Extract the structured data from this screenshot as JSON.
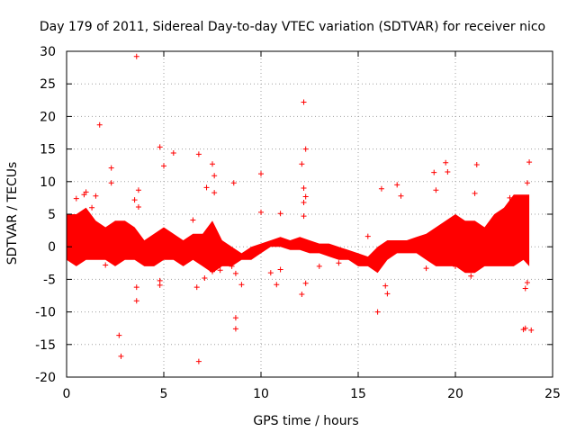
{
  "chart_data": {
    "type": "scatter",
    "title": "Day 179 of 2011, Sidereal Day-to-day VTEC variation (SDTVAR) for receiver nico",
    "xlabel": "GPS time / hours",
    "ylabel": "SDTVAR / TECUs",
    "xlim": [
      0,
      25
    ],
    "ylim": [
      -20,
      30
    ],
    "grid": true,
    "marker": "+",
    "color": "#ff0000",
    "x_ticks": [
      0,
      5,
      10,
      15,
      20,
      25
    ],
    "y_ticks": [
      -20,
      -15,
      -10,
      -5,
      0,
      5,
      10,
      15,
      20,
      25,
      30
    ],
    "x_tick_labels": [
      "0",
      "5",
      "10",
      "15",
      "20",
      "25"
    ],
    "y_tick_labels": [
      "-20",
      "-15",
      "-10",
      "-5",
      "0",
      "5",
      "10",
      "15",
      "20",
      "25",
      "30"
    ],
    "dense_band": {
      "x": [
        0.0,
        0.5,
        1.0,
        1.5,
        2.0,
        2.5,
        3.0,
        3.5,
        4.0,
        4.5,
        5.0,
        5.5,
        6.0,
        6.5,
        7.0,
        7.5,
        8.0,
        8.5,
        9.0,
        9.5,
        10.0,
        10.5,
        11.0,
        11.5,
        12.0,
        12.5,
        13.0,
        13.5,
        14.0,
        14.5,
        15.0,
        15.5,
        16.0,
        16.5,
        17.0,
        17.5,
        18.0,
        18.5,
        19.0,
        19.5,
        20.0,
        20.5,
        21.0,
        21.5,
        22.0,
        22.5,
        23.0,
        23.5,
        23.8
      ],
      "y_upper": [
        5,
        5,
        6,
        4,
        3,
        4,
        4,
        3,
        1,
        2,
        3,
        2,
        1,
        2,
        2,
        4,
        1,
        0,
        -1,
        0,
        0.5,
        1,
        1.5,
        1,
        1.5,
        1,
        0.5,
        0.5,
        0,
        -0.5,
        -1,
        -1.5,
        0,
        1,
        1,
        1,
        1.5,
        2,
        3,
        4,
        5,
        4,
        4,
        3,
        5,
        6,
        8,
        8,
        8
      ],
      "y_lower": [
        -2,
        -3,
        -2,
        -2,
        -2,
        -3,
        -2,
        -2,
        -3,
        -3,
        -2,
        -2,
        -3,
        -2,
        -3,
        -4,
        -3,
        -3,
        -2,
        -2,
        -1,
        0,
        0,
        -0.5,
        -0.5,
        -1,
        -1,
        -1.5,
        -2,
        -2,
        -3,
        -3,
        -4,
        -2,
        -1,
        -1,
        -1,
        -2,
        -3,
        -3,
        -3,
        -4,
        -4,
        -3,
        -3,
        -3,
        -3,
        -2,
        -3
      ]
    },
    "x": [
      3.6,
      1.7,
      2.3,
      2.3,
      1.0,
      4.8,
      5.0,
      5.5,
      6.8,
      7.5,
      7.6,
      8.6,
      10.0,
      10.0,
      11.0,
      12.2,
      12.3,
      12.1,
      12.2,
      12.3,
      12.2,
      12.2,
      12.3,
      12.1,
      3.6,
      3.6,
      2.7,
      2.8,
      6.8,
      8.7,
      8.7,
      4.8,
      4.8,
      9.0,
      3.7,
      3.7,
      3.5,
      16.2,
      16.4,
      16.5,
      17.0,
      17.2,
      18.9,
      19.0,
      19.5,
      19.6,
      21.1,
      21.0,
      23.8,
      23.7,
      23.9,
      23.6,
      23.5,
      23.6,
      23.7,
      22.8,
      7.1,
      7.5,
      7.6,
      8.5,
      0.5,
      1.5,
      2.0,
      6.5,
      7.9,
      8.7,
      10.8,
      11.0,
      13.0,
      14.0,
      15.5,
      16.0,
      18.5,
      20.0,
      20.8,
      22.5,
      0.3,
      0.9,
      1.3,
      6.7,
      7.2,
      10.5
    ],
    "y": [
      29.2,
      18.7,
      12.1,
      9.8,
      8.4,
      15.3,
      12.4,
      14.4,
      14.2,
      12.7,
      10.9,
      9.8,
      11.2,
      5.3,
      5.1,
      22.2,
      15.0,
      12.7,
      9.0,
      7.7,
      6.8,
      4.7,
      -5.6,
      -7.3,
      -6.2,
      -8.3,
      -13.6,
      -16.8,
      -17.6,
      -10.9,
      -12.6,
      -5.2,
      -5.9,
      -5.8,
      8.7,
      6.1,
      7.2,
      8.9,
      -6.0,
      -7.2,
      9.5,
      7.8,
      11.4,
      8.7,
      12.9,
      11.5,
      12.6,
      8.2,
      13.0,
      9.8,
      -12.8,
      -12.5,
      -12.7,
      -6.4,
      -5.5,
      7.5,
      -4.8,
      -3.8,
      8.3,
      -3.0,
      7.4,
      7.8,
      -2.8,
      4.1,
      -3.6,
      -4.1,
      -5.8,
      -3.5,
      -3.0,
      -2.5,
      1.6,
      -10.0,
      -3.3,
      -3.0,
      -4.5,
      1.0,
      3.6,
      8.0,
      6.0,
      -6.2,
      9.1,
      -4.0
    ]
  }
}
